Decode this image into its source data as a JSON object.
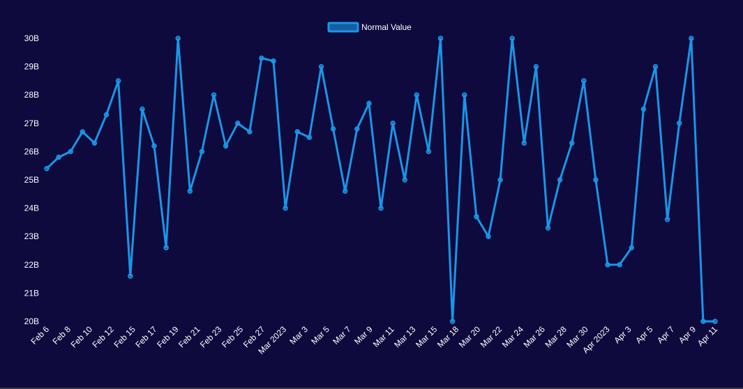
{
  "chart_data": {
    "type": "line",
    "title": "",
    "xlabel": "",
    "ylabel": "",
    "ylim": [
      20,
      30
    ],
    "y_ticks": [
      "20B",
      "21B",
      "22B",
      "23B",
      "24B",
      "25B",
      "26B",
      "27B",
      "28B",
      "29B",
      "30B"
    ],
    "x_ticks": [
      "Feb 6",
      "Feb 8",
      "Feb 10",
      "Feb 12",
      "Feb 15",
      "Feb 17",
      "Feb 19",
      "Feb 21",
      "Feb 23",
      "Feb 25",
      "Feb 27",
      "Mar 2023",
      "Mar 3",
      "Mar 5",
      "Mar 7",
      "Mar 9",
      "Mar 11",
      "Mar 13",
      "Mar 15",
      "Mar 18",
      "Mar 20",
      "Mar 22",
      "Mar 24",
      "Mar 26",
      "Mar 28",
      "Mar 30",
      "Apr 2023",
      "Apr 3",
      "Apr 5",
      "Apr 7",
      "Apr 9",
      "Apr 11"
    ],
    "legend": {
      "label": "Normal Value",
      "position": "top-center"
    },
    "series": [
      {
        "name": "Normal Value",
        "color": "#1a96e6",
        "unit": "B",
        "points": [
          {
            "x": "Feb 6",
            "y": 25.4
          },
          {
            "x": "Feb 7",
            "y": 25.8
          },
          {
            "x": "Feb 8",
            "y": 26.0
          },
          {
            "x": "Feb 9",
            "y": 26.7
          },
          {
            "x": "Feb 10",
            "y": 26.3
          },
          {
            "x": "Feb 11",
            "y": 27.3
          },
          {
            "x": "Feb 12",
            "y": 28.5
          },
          {
            "x": "Feb 13",
            "y": 21.6
          },
          {
            "x": "Feb 15",
            "y": 27.5
          },
          {
            "x": "Feb 16",
            "y": 26.2
          },
          {
            "x": "Feb 17",
            "y": 22.6
          },
          {
            "x": "Feb 18",
            "y": 30.0
          },
          {
            "x": "Feb 19",
            "y": 24.6
          },
          {
            "x": "Feb 20",
            "y": 26.0
          },
          {
            "x": "Feb 21",
            "y": 28.0
          },
          {
            "x": "Feb 22",
            "y": 26.2
          },
          {
            "x": "Feb 23",
            "y": 27.0
          },
          {
            "x": "Feb 24",
            "y": 26.7
          },
          {
            "x": "Feb 25",
            "y": 29.3
          },
          {
            "x": "Feb 26",
            "y": 29.2
          },
          {
            "x": "Feb 27",
            "y": 24.0
          },
          {
            "x": "Feb 28",
            "y": 26.7
          },
          {
            "x": "Mar 2023",
            "y": 26.5
          },
          {
            "x": "Mar 2",
            "y": 29.0
          },
          {
            "x": "Mar 3",
            "y": 26.8
          },
          {
            "x": "Mar 4",
            "y": 24.6
          },
          {
            "x": "Mar 5",
            "y": 26.8
          },
          {
            "x": "Mar 6",
            "y": 27.7
          },
          {
            "x": "Mar 8",
            "y": 24.0
          },
          {
            "x": "Mar 9",
            "y": 27.0
          },
          {
            "x": "Mar 11",
            "y": 25.0
          },
          {
            "x": "Mar 12",
            "y": 28.0
          },
          {
            "x": "Mar 13",
            "y": 26.0
          },
          {
            "x": "Mar 15",
            "y": 30.0
          },
          {
            "x": "Mar 16",
            "y": 20.0
          },
          {
            "x": "Mar 17",
            "y": 28.0
          },
          {
            "x": "Mar 19",
            "y": 23.7
          },
          {
            "x": "Mar 21",
            "y": 23.0
          },
          {
            "x": "Mar 22",
            "y": 25.0
          },
          {
            "x": "Mar 23",
            "y": 30.0
          },
          {
            "x": "Mar 25",
            "y": 26.3
          },
          {
            "x": "Mar 26",
            "y": 29.0
          },
          {
            "x": "Mar 27",
            "y": 23.3
          },
          {
            "x": "Mar 28",
            "y": 25.0
          },
          {
            "x": "Mar 29",
            "y": 26.3
          },
          {
            "x": "Mar 31",
            "y": 28.5
          },
          {
            "x": "Apr 2023",
            "y": 25.0
          },
          {
            "x": "Apr 3",
            "y": 22.0
          },
          {
            "x": "Apr 4",
            "y": 22.0
          },
          {
            "x": "Apr 5",
            "y": 22.6
          },
          {
            "x": "Apr 6",
            "y": 27.5
          },
          {
            "x": "Apr 7",
            "y": 29.0
          },
          {
            "x": "Apr 8",
            "y": 23.6
          },
          {
            "x": "Apr 9",
            "y": 27.0
          },
          {
            "x": "Apr 10",
            "y": 30.0
          },
          {
            "x": "Apr 11",
            "y": 20.0
          },
          {
            "x": "Apr 12",
            "y": 20.0
          }
        ]
      }
    ]
  }
}
